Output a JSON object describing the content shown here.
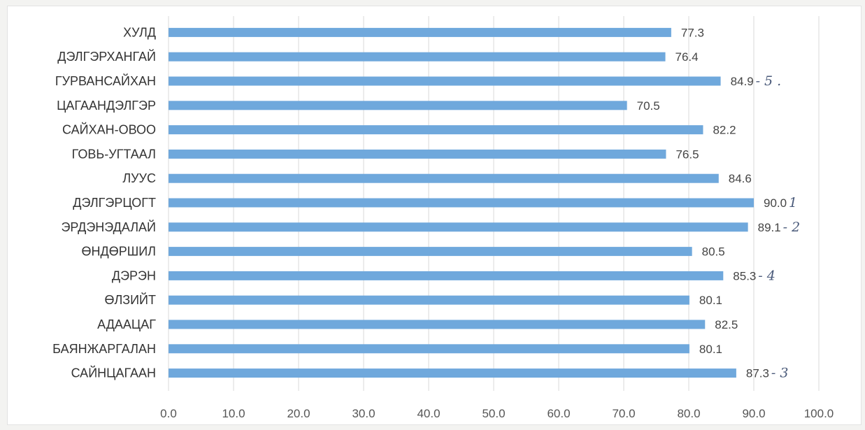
{
  "chart_data": {
    "type": "bar",
    "orientation": "horizontal",
    "categories": [
      "ХУЛД",
      "ДЭЛГЭРХАНГАЙ",
      "ГУРВАНСАЙХАН",
      "ЦАГААНДЭЛГЭР",
      "САЙХАН-ОВОО",
      "ГОВЬ-УГТААЛ",
      "ЛУУС",
      "ДЭЛГЭРЦОГТ",
      "ЭРДЭНЭДАЛАЙ",
      "ӨНДӨРШИЛ",
      "ДЭРЭН",
      "ӨЛЗИЙТ",
      "АДААЦАГ",
      "БАЯНЖАРГАЛАН",
      "САЙНЦАГААН"
    ],
    "values": [
      77.3,
      76.4,
      84.9,
      70.5,
      82.2,
      76.5,
      84.6,
      90.0,
      89.1,
      80.5,
      85.3,
      80.1,
      82.5,
      80.1,
      87.3
    ],
    "data_labels": [
      "77.3",
      "76.4",
      "84.9",
      "70.5",
      "82.2",
      "76.5",
      "84.6",
      "90.0",
      "89.1",
      "80.5",
      "85.3",
      "80.1",
      "82.5",
      "80.1",
      "87.3"
    ],
    "handwritten_annotations": [
      "",
      "",
      "- 5 .",
      "",
      "",
      "",
      "",
      "1",
      "- 2",
      "",
      "- 4",
      "",
      "",
      "",
      "- 3"
    ],
    "xticks": [
      "0.0",
      "10.0",
      "20.0",
      "30.0",
      "40.0",
      "50.0",
      "60.0",
      "70.0",
      "80.0",
      "90.0",
      "100.0"
    ],
    "xlim": [
      0,
      100
    ],
    "grid": true,
    "legend": "none",
    "title": "",
    "xlabel": "",
    "ylabel": "",
    "bar_color": "#6fa8dc",
    "grid_color": "#d9d9d9",
    "annotation_color": "#4a5a7a"
  }
}
